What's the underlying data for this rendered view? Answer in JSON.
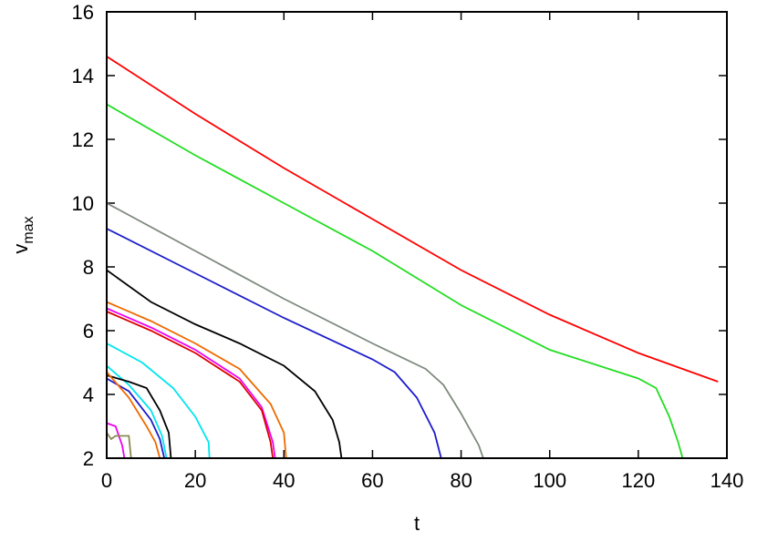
{
  "chart_data": {
    "type": "line",
    "xlabel": "t",
    "ylabel": "v",
    "ylabel_sub": "max",
    "xlim": [
      0,
      140
    ],
    "xticks": [
      0,
      20,
      40,
      60,
      80,
      100,
      120,
      140
    ],
    "ylim": [
      2,
      16
    ],
    "yticks": [
      2,
      4,
      6,
      8,
      10,
      12,
      14,
      16
    ],
    "series": [
      {
        "color": "#ff0000",
        "x": [
          0,
          20,
          40,
          60,
          80,
          100,
          120,
          138
        ],
        "values": [
          14.6,
          12.8,
          11.1,
          9.5,
          7.9,
          6.5,
          5.3,
          4.4
        ]
      },
      {
        "color": "#22dd22",
        "x": [
          0,
          20,
          40,
          60,
          80,
          100,
          120,
          124,
          127,
          129,
          130
        ],
        "values": [
          13.1,
          11.5,
          10.0,
          8.5,
          6.8,
          5.4,
          4.5,
          4.2,
          3.3,
          2.5,
          2.0
        ]
      },
      {
        "color": "#7f8a7f",
        "x": [
          0,
          20,
          40,
          60,
          72,
          76,
          80,
          84,
          85
        ],
        "values": [
          10.0,
          8.5,
          7.0,
          5.6,
          4.8,
          4.3,
          3.4,
          2.4,
          2.0
        ]
      },
      {
        "color": "#1c1ccc",
        "x": [
          0,
          20,
          40,
          60,
          65,
          70,
          74,
          75.5
        ],
        "values": [
          9.2,
          7.8,
          6.4,
          5.1,
          4.7,
          3.9,
          2.8,
          2.0
        ]
      },
      {
        "color": "#000000",
        "x": [
          0,
          10,
          20,
          30,
          40,
          47,
          51,
          52.5,
          53
        ],
        "values": [
          7.9,
          6.9,
          6.2,
          5.6,
          4.9,
          4.1,
          3.2,
          2.5,
          2.0
        ]
      },
      {
        "color": "#ee6a00",
        "x": [
          0,
          10,
          20,
          30,
          37,
          40,
          40.5
        ],
        "values": [
          6.9,
          6.3,
          5.6,
          4.8,
          3.7,
          2.8,
          2.0
        ]
      },
      {
        "color": "#ee00ee",
        "x": [
          0,
          10,
          20,
          30,
          35,
          37.5,
          38
        ],
        "values": [
          6.7,
          6.1,
          5.4,
          4.5,
          3.6,
          2.5,
          2.0
        ]
      },
      {
        "color": "#dd0000",
        "x": [
          0,
          10,
          20,
          30,
          35,
          37,
          37.5
        ],
        "values": [
          6.6,
          6.0,
          5.3,
          4.4,
          3.5,
          2.5,
          2.0
        ]
      },
      {
        "color": "#00e5ee",
        "x": [
          0,
          8,
          15,
          20,
          23,
          23.2
        ],
        "values": [
          5.6,
          5.0,
          4.2,
          3.3,
          2.5,
          2.0
        ]
      },
      {
        "color": "#00e5ee",
        "x": [
          0,
          5,
          10,
          12.5,
          13.5
        ],
        "values": [
          4.9,
          4.3,
          3.5,
          2.7,
          2.0
        ]
      },
      {
        "color": "#000000",
        "x": [
          0,
          5,
          9,
          12,
          14,
          14.5
        ],
        "values": [
          4.6,
          4.4,
          4.2,
          3.5,
          2.8,
          2.0
        ]
      },
      {
        "color": "#1c1ccc",
        "x": [
          0,
          5,
          10,
          12,
          13
        ],
        "values": [
          4.5,
          4.1,
          3.2,
          2.6,
          2.0
        ]
      },
      {
        "color": "#ee6a00",
        "x": [
          0,
          5,
          9,
          11,
          12
        ],
        "values": [
          4.7,
          3.9,
          3.0,
          2.5,
          2.0
        ]
      },
      {
        "color": "#ee00ee",
        "x": [
          0,
          2,
          3.5,
          4
        ],
        "values": [
          3.1,
          3.0,
          2.4,
          2.0
        ]
      },
      {
        "color": "#8a8a50",
        "x": [
          0,
          1,
          2,
          5,
          5.5
        ],
        "values": [
          2.8,
          2.6,
          2.7,
          2.7,
          2.0
        ]
      }
    ]
  }
}
